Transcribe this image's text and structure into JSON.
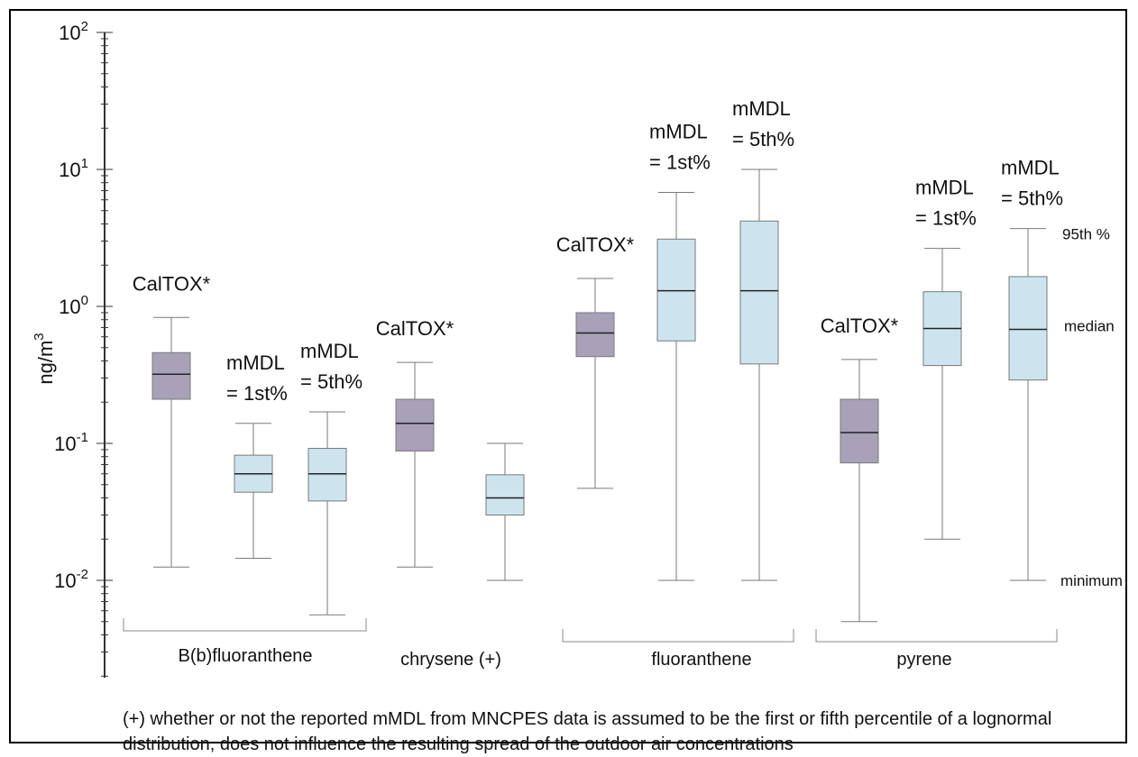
{
  "chart_data": {
    "type": "boxplot",
    "yscale": "log",
    "ylim": [
      0.0035,
      100
    ],
    "ylabel": "ng/m",
    "ylabel_superscript": "3",
    "yticks": [
      {
        "value": 100,
        "base": "10",
        "exp": "2"
      },
      {
        "value": 10,
        "base": "10",
        "exp": "1"
      },
      {
        "value": 1,
        "base": "10",
        "exp": "0"
      },
      {
        "value": 0.1,
        "base": "10",
        "exp": "-1"
      },
      {
        "value": 0.01,
        "base": "10",
        "exp": "-2"
      }
    ],
    "colors": {
      "caltox": "#a8a1b8",
      "mmdl": "#cde4ef",
      "stroke": "#7a7a7a"
    },
    "boxes": [
      {
        "label": "CalTOX*",
        "label_lines": [
          "CalTOX*"
        ],
        "kind": "caltox",
        "min": 0.0125,
        "q1": 0.21,
        "median": 0.32,
        "q3": 0.46,
        "p95": 0.83
      },
      {
        "label": "mMDL = 1st%",
        "label_lines": [
          "mMDL",
          "= 1st%"
        ],
        "kind": "mmdl",
        "min": 0.0145,
        "q1": 0.044,
        "median": 0.06,
        "q3": 0.082,
        "p95": 0.14
      },
      {
        "label": "mMDL = 5th%",
        "label_lines": [
          "mMDL",
          "= 5th%"
        ],
        "kind": "mmdl",
        "min": 0.0056,
        "q1": 0.038,
        "median": 0.06,
        "q3": 0.092,
        "p95": 0.17
      },
      {
        "label": "CalTOX*",
        "label_lines": [
          "CalTOX*"
        ],
        "kind": "caltox",
        "min": 0.0125,
        "q1": 0.088,
        "median": 0.14,
        "q3": 0.21,
        "p95": 0.39
      },
      {
        "label": "",
        "label_lines": [],
        "kind": "mmdl",
        "min": 0.01,
        "q1": 0.03,
        "median": 0.04,
        "q3": 0.059,
        "p95": 0.1
      },
      {
        "label": "CalTOX*",
        "label_lines": [
          "CalTOX*"
        ],
        "kind": "caltox",
        "min": 0.047,
        "q1": 0.43,
        "median": 0.64,
        "q3": 0.9,
        "p95": 1.6
      },
      {
        "label": "mMDL = 1st%",
        "label_lines": [
          "mMDL",
          "= 1st%"
        ],
        "kind": "mmdl",
        "min": 0.01,
        "q1": 0.56,
        "median": 1.3,
        "q3": 3.1,
        "p95": 6.8
      },
      {
        "label": "mMDL = 5th%",
        "label_lines": [
          "mMDL",
          "= 5th%"
        ],
        "kind": "mmdl",
        "min": 0.01,
        "q1": 0.38,
        "median": 1.3,
        "q3": 4.2,
        "p95": 10
      },
      {
        "label": "CalTOX*",
        "label_lines": [
          "CalTOX*"
        ],
        "kind": "caltox",
        "min": 0.005,
        "q1": 0.072,
        "median": 0.12,
        "q3": 0.21,
        "p95": 0.41
      },
      {
        "label": "mMDL = 1st%",
        "label_lines": [
          "mMDL",
          "= 1st%"
        ],
        "kind": "mmdl",
        "min": 0.02,
        "q1": 0.37,
        "median": 0.69,
        "q3": 1.28,
        "p95": 2.65
      },
      {
        "label": "mMDL = 5th%",
        "label_lines": [
          "mMDL",
          "= 5th%"
        ],
        "kind": "mmdl",
        "min": 0.01,
        "q1": 0.29,
        "median": 0.68,
        "q3": 1.65,
        "p95": 3.7
      }
    ],
    "groups": [
      {
        "name": "B(b)fluoranthene",
        "boxes": [
          0,
          1,
          2
        ]
      },
      {
        "name": "chrysene (+)",
        "boxes": [
          3,
          4
        ]
      },
      {
        "name": "fluoranthene",
        "boxes": [
          5,
          6,
          7
        ]
      },
      {
        "name": "pyrene",
        "boxes": [
          8,
          9,
          10
        ]
      }
    ],
    "legend": {
      "p95": "95th %",
      "median": "median",
      "minimum": "minimum"
    },
    "footnote": "(+) whether or not the reported mMDL from MNCPES data is assumed to be the first or fifth percentile of a lognormal distribution, does not influence the resulting spread of the outdoor air concentrations"
  }
}
